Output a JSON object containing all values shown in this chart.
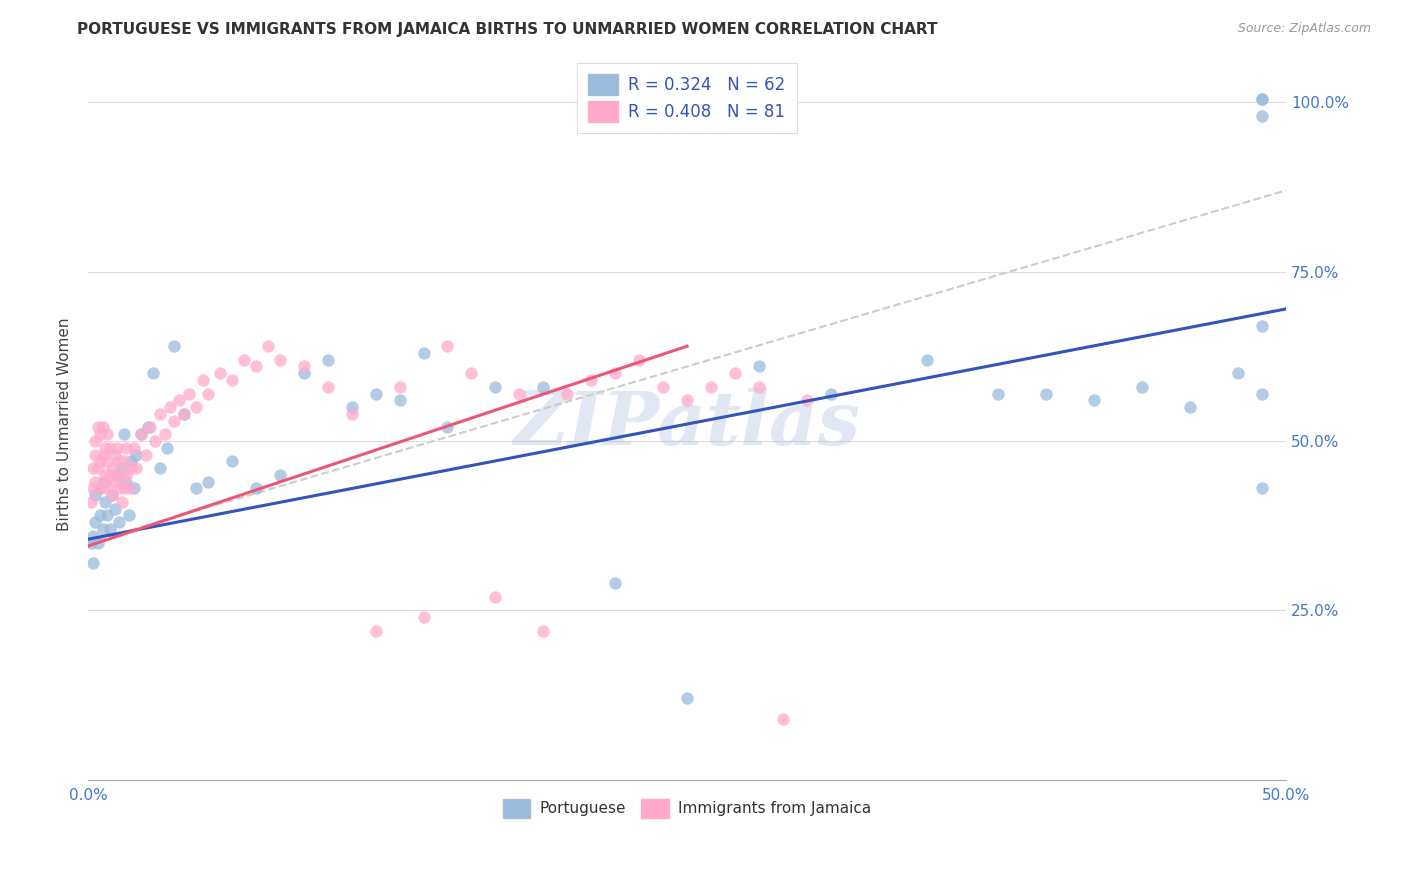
{
  "title": "PORTUGUESE VS IMMIGRANTS FROM JAMAICA BIRTHS TO UNMARRIED WOMEN CORRELATION CHART",
  "source": "Source: ZipAtlas.com",
  "ylabel": "Births to Unmarried Women",
  "legend_label1": "Portuguese",
  "legend_label2": "Immigrants from Jamaica",
  "watermark": "ZIPatlas",
  "blue_scatter_color": "#99BBDD",
  "pink_scatter_color": "#FFAACC",
  "blue_line_color": "#3355BB",
  "pink_line_color": "#EE5577",
  "dashed_line_color": "#CCCCCC",
  "title_color": "#333333",
  "source_color": "#999999",
  "ytick_color": "#4477CC",
  "xtick_color": "#4477CC",
  "xlim": [
    0.0,
    0.5
  ],
  "ylim": [
    0.0,
    1.05
  ],
  "portuguese_x": [
    0.001,
    0.002,
    0.002,
    0.003,
    0.003,
    0.004,
    0.005,
    0.005,
    0.006,
    0.007,
    0.007,
    0.008,
    0.009,
    0.01,
    0.011,
    0.012,
    0.013,
    0.014,
    0.015,
    0.016,
    0.017,
    0.018,
    0.019,
    0.02,
    0.022,
    0.025,
    0.027,
    0.03,
    0.033,
    0.036,
    0.04,
    0.045,
    0.05,
    0.06,
    0.07,
    0.08,
    0.09,
    0.1,
    0.11,
    0.12,
    0.13,
    0.14,
    0.15,
    0.17,
    0.19,
    0.22,
    0.25,
    0.28,
    0.31,
    0.35,
    0.38,
    0.4,
    0.42,
    0.44,
    0.46,
    0.48,
    0.49,
    0.49,
    0.49,
    0.49,
    0.49,
    0.49
  ],
  "portuguese_y": [
    0.35,
    0.36,
    0.32,
    0.38,
    0.42,
    0.35,
    0.39,
    0.43,
    0.37,
    0.41,
    0.44,
    0.39,
    0.37,
    0.42,
    0.4,
    0.45,
    0.38,
    0.46,
    0.51,
    0.44,
    0.39,
    0.47,
    0.43,
    0.48,
    0.51,
    0.52,
    0.6,
    0.46,
    0.49,
    0.64,
    0.54,
    0.43,
    0.44,
    0.47,
    0.43,
    0.45,
    0.6,
    0.62,
    0.55,
    0.57,
    0.56,
    0.63,
    0.52,
    0.58,
    0.58,
    0.29,
    0.12,
    0.61,
    0.57,
    0.62,
    0.57,
    0.57,
    0.56,
    0.58,
    0.55,
    0.6,
    1.005,
    1.005,
    0.98,
    0.67,
    0.57,
    0.43
  ],
  "jamaica_x": [
    0.001,
    0.002,
    0.002,
    0.003,
    0.003,
    0.003,
    0.004,
    0.004,
    0.005,
    0.005,
    0.005,
    0.006,
    0.006,
    0.006,
    0.007,
    0.007,
    0.008,
    0.008,
    0.008,
    0.009,
    0.009,
    0.01,
    0.01,
    0.011,
    0.011,
    0.012,
    0.012,
    0.013,
    0.013,
    0.014,
    0.014,
    0.015,
    0.015,
    0.016,
    0.016,
    0.017,
    0.018,
    0.019,
    0.02,
    0.022,
    0.024,
    0.026,
    0.028,
    0.03,
    0.032,
    0.034,
    0.036,
    0.038,
    0.04,
    0.042,
    0.045,
    0.048,
    0.05,
    0.055,
    0.06,
    0.065,
    0.07,
    0.075,
    0.08,
    0.09,
    0.1,
    0.11,
    0.12,
    0.13,
    0.14,
    0.15,
    0.16,
    0.17,
    0.18,
    0.19,
    0.2,
    0.21,
    0.22,
    0.23,
    0.24,
    0.25,
    0.26,
    0.27,
    0.28,
    0.29,
    0.3
  ],
  "jamaica_y": [
    0.41,
    0.43,
    0.46,
    0.44,
    0.48,
    0.5,
    0.46,
    0.52,
    0.43,
    0.47,
    0.51,
    0.44,
    0.48,
    0.52,
    0.45,
    0.49,
    0.43,
    0.47,
    0.51,
    0.45,
    0.49,
    0.42,
    0.46,
    0.44,
    0.48,
    0.45,
    0.49,
    0.43,
    0.47,
    0.41,
    0.45,
    0.43,
    0.47,
    0.45,
    0.49,
    0.43,
    0.46,
    0.49,
    0.46,
    0.51,
    0.48,
    0.52,
    0.5,
    0.54,
    0.51,
    0.55,
    0.53,
    0.56,
    0.54,
    0.57,
    0.55,
    0.59,
    0.57,
    0.6,
    0.59,
    0.62,
    0.61,
    0.64,
    0.62,
    0.61,
    0.58,
    0.54,
    0.22,
    0.58,
    0.24,
    0.64,
    0.6,
    0.27,
    0.57,
    0.22,
    0.57,
    0.59,
    0.6,
    0.62,
    0.58,
    0.56,
    0.58,
    0.6,
    0.58,
    0.09,
    0.56
  ],
  "port_line_x": [
    0.0,
    0.5
  ],
  "port_line_y": [
    0.355,
    0.695
  ],
  "jam_line_x": [
    0.0,
    0.25
  ],
  "jam_line_y": [
    0.345,
    0.64
  ],
  "dash_line_x": [
    0.0,
    0.5
  ],
  "dash_line_y": [
    0.35,
    0.87
  ]
}
